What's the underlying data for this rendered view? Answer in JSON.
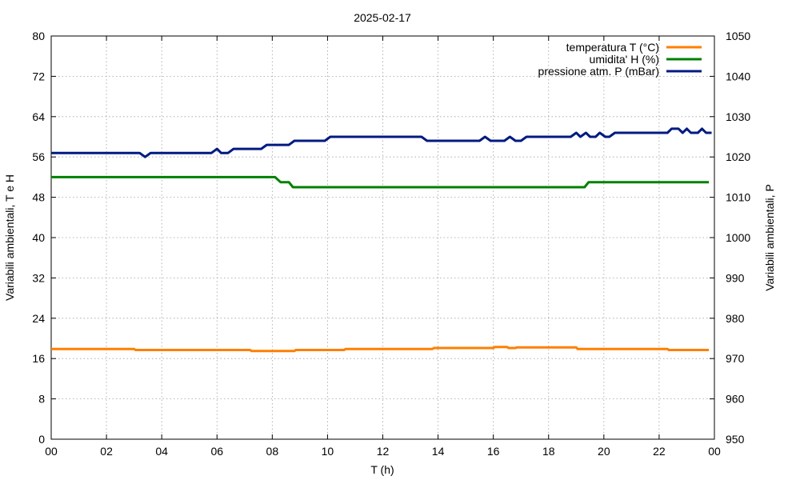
{
  "chart_data": {
    "type": "line",
    "title": "2025-02-17",
    "xlabel": "T (h)",
    "ylabel": "Variabili ambientali, T e H",
    "y2label": "Variabili ambientali, P",
    "xlim": [
      0,
      24
    ],
    "ylim": [
      0,
      80
    ],
    "y2lim": [
      950,
      1050
    ],
    "grid": true,
    "legend": "top-right",
    "xticks": [
      "00",
      "02",
      "04",
      "06",
      "08",
      "10",
      "12",
      "14",
      "16",
      "18",
      "20",
      "22",
      "00"
    ],
    "yticks": [
      "0",
      "8",
      "16",
      "24",
      "32",
      "40",
      "48",
      "56",
      "64",
      "72",
      "80"
    ],
    "y2ticks": [
      "950",
      "960",
      "970",
      "980",
      "990",
      "1000",
      "1010",
      "1020",
      "1030",
      "1040",
      "1050"
    ],
    "series": [
      {
        "name": "temperatura T (°C)",
        "color": "#ff7f00",
        "axis": "left",
        "points": [
          [
            0,
            17.9
          ],
          [
            3,
            17.9
          ],
          [
            3.05,
            17.7
          ],
          [
            7.2,
            17.7
          ],
          [
            7.25,
            17.5
          ],
          [
            8.8,
            17.5
          ],
          [
            8.85,
            17.7
          ],
          [
            10.6,
            17.7
          ],
          [
            10.65,
            17.9
          ],
          [
            13.8,
            17.9
          ],
          [
            13.85,
            18.1
          ],
          [
            16,
            18.1
          ],
          [
            16.05,
            18.3
          ],
          [
            16.5,
            18.3
          ],
          [
            16.55,
            18.1
          ],
          [
            16.8,
            18.1
          ],
          [
            16.85,
            18.2
          ],
          [
            19,
            18.2
          ],
          [
            19.05,
            17.9
          ],
          [
            22.3,
            17.9
          ],
          [
            22.35,
            17.7
          ],
          [
            23.8,
            17.7
          ]
        ]
      },
      {
        "name": "umidita' H (%)",
        "color": "#008000",
        "axis": "left",
        "points": [
          [
            0,
            52
          ],
          [
            8.1,
            52
          ],
          [
            8.3,
            51
          ],
          [
            8.6,
            51
          ],
          [
            8.75,
            50
          ],
          [
            19.3,
            50
          ],
          [
            19.45,
            51
          ],
          [
            23.8,
            51
          ]
        ]
      },
      {
        "name": "pressione atm. P (mBar)",
        "color": "#001a80",
        "axis": "right",
        "points": [
          [
            0,
            1021
          ],
          [
            3.2,
            1021
          ],
          [
            3.4,
            1020
          ],
          [
            3.6,
            1021
          ],
          [
            5.8,
            1021
          ],
          [
            6,
            1022
          ],
          [
            6.15,
            1021
          ],
          [
            6.4,
            1021
          ],
          [
            6.6,
            1022
          ],
          [
            7.6,
            1022
          ],
          [
            7.8,
            1023
          ],
          [
            8.6,
            1023
          ],
          [
            8.8,
            1024
          ],
          [
            9.9,
            1024
          ],
          [
            10.1,
            1025
          ],
          [
            13.4,
            1025
          ],
          [
            13.6,
            1024
          ],
          [
            15.5,
            1024
          ],
          [
            15.7,
            1025
          ],
          [
            15.9,
            1024
          ],
          [
            16.4,
            1024
          ],
          [
            16.6,
            1025
          ],
          [
            16.8,
            1024
          ],
          [
            17,
            1024
          ],
          [
            17.2,
            1025
          ],
          [
            18.8,
            1025
          ],
          [
            19,
            1026
          ],
          [
            19.15,
            1025
          ],
          [
            19.35,
            1026
          ],
          [
            19.5,
            1025
          ],
          [
            19.7,
            1025
          ],
          [
            19.85,
            1026
          ],
          [
            20.05,
            1025
          ],
          [
            20.2,
            1025
          ],
          [
            20.4,
            1026
          ],
          [
            22.3,
            1026
          ],
          [
            22.45,
            1027
          ],
          [
            22.7,
            1027
          ],
          [
            22.85,
            1026
          ],
          [
            23,
            1027
          ],
          [
            23.15,
            1026
          ],
          [
            23.4,
            1026
          ],
          [
            23.55,
            1027
          ],
          [
            23.7,
            1026
          ],
          [
            23.9,
            1026
          ]
        ]
      }
    ]
  }
}
